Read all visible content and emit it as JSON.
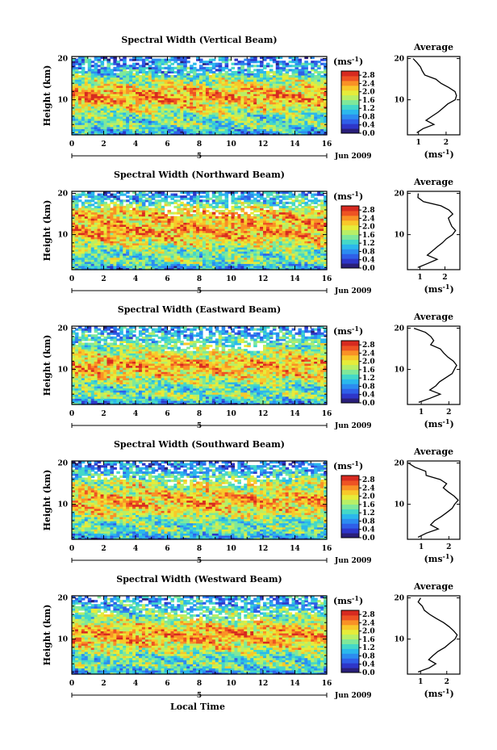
{
  "figure": {
    "xlabel": "Local Time",
    "date_label": "Jun 2009",
    "date_marker": "5",
    "cb_unit": "(ms",
    "cb_unit_exp": "-1",
    "cb_unit_close": ")",
    "avg_title": "Average",
    "ylabel_main": "Height (km)"
  },
  "chart_data": [
    {
      "type": "heatmap",
      "title": "Spectral Width (Vertical Beam)",
      "xlabel": "Local Time",
      "ylabel": "Height (km)",
      "x_ticks": [
        "0",
        "2",
        "4",
        "6",
        "8",
        "10",
        "12",
        "14",
        "16"
      ],
      "xlim": [
        0,
        16
      ],
      "y_ticks": [
        "10",
        "20"
      ],
      "ylim": [
        1.5,
        20.5
      ],
      "colorbar": {
        "unit": "(ms-1)",
        "ticks": [
          "0.0",
          "0.4",
          "0.8",
          "1.2",
          "1.6",
          "2.0",
          "2.4",
          "2.8"
        ],
        "range": [
          0,
          3.0
        ]
      },
      "average_profile": {
        "title": "Average",
        "xlabel": "(ms-1)",
        "x_ticks": [
          "1",
          "2"
        ],
        "xlim": [
          0.6,
          2.5
        ],
        "height_km": [
          2,
          3,
          4,
          5,
          6,
          7,
          8,
          9,
          10,
          11,
          12,
          13,
          14,
          15,
          16,
          17,
          18,
          19,
          20
        ],
        "width_ms": [
          0.9,
          1.2,
          1.6,
          1.3,
          1.5,
          1.7,
          1.9,
          2.1,
          2.3,
          2.4,
          2.3,
          2.1,
          1.8,
          1.6,
          1.3,
          1.1,
          0.9,
          0.8,
          0.7
        ]
      }
    },
    {
      "type": "heatmap",
      "title": "Spectral Width (Northward Beam)",
      "xlabel": "Local Time",
      "ylabel": "Height (km)",
      "x_ticks": [
        "0",
        "2",
        "4",
        "6",
        "8",
        "10",
        "12",
        "14",
        "16"
      ],
      "xlim": [
        0,
        16
      ],
      "y_ticks": [
        "10",
        "20"
      ],
      "ylim": [
        1.5,
        20.5
      ],
      "colorbar": {
        "unit": "(ms-1)",
        "ticks": [
          "0.0",
          "0.4",
          "0.8",
          "1.2",
          "1.6",
          "2.0",
          "2.4",
          "2.8"
        ],
        "range": [
          0,
          3.0
        ]
      },
      "average_profile": {
        "title": "Average",
        "xlabel": "(ms-1)",
        "x_ticks": [
          "1",
          "2"
        ],
        "xlim": [
          0.5,
          2.6
        ],
        "height_km": [
          2,
          3,
          4,
          5,
          6,
          7,
          8,
          9,
          10,
          11,
          12,
          13,
          14,
          15,
          16,
          17,
          18,
          19,
          20
        ],
        "width_ms": [
          0.9,
          1.3,
          1.7,
          1.3,
          1.5,
          1.7,
          1.9,
          2.1,
          2.3,
          2.4,
          2.3,
          2.2,
          2.1,
          2.3,
          2.0,
          1.7,
          1.3,
          1.0,
          0.8
        ]
      }
    },
    {
      "type": "heatmap",
      "title": "Spectral Width (Eastward Beam)",
      "xlabel": "Local Time",
      "ylabel": "Height (km)",
      "x_ticks": [
        "0",
        "2",
        "4",
        "6",
        "8",
        "10",
        "12",
        "14",
        "16"
      ],
      "xlim": [
        0,
        16
      ],
      "y_ticks": [
        "10",
        "20"
      ],
      "ylim": [
        1.5,
        20.5
      ],
      "colorbar": {
        "unit": "(ms-1)",
        "ticks": [
          "0.0",
          "0.4",
          "0.8",
          "1.2",
          "1.6",
          "2.0",
          "2.4",
          "2.8"
        ],
        "range": [
          0,
          3.0
        ]
      },
      "average_profile": {
        "title": "Average",
        "xlabel": "(ms-1)",
        "x_ticks": [
          "1",
          "2"
        ],
        "xlim": [
          0.5,
          2.4
        ],
        "height_km": [
          2,
          3,
          4,
          5,
          6,
          7,
          8,
          9,
          10,
          11,
          12,
          13,
          14,
          15,
          16,
          17,
          18,
          19,
          20
        ],
        "width_ms": [
          0.9,
          1.3,
          1.7,
          1.3,
          1.5,
          1.7,
          1.9,
          2.1,
          2.2,
          2.3,
          2.2,
          2.0,
          1.8,
          1.7,
          1.5,
          1.3,
          1.2,
          1.0,
          0.9
        ]
      }
    },
    {
      "type": "heatmap",
      "title": "Spectral Width (Southward Beam)",
      "xlabel": "Local Time",
      "ylabel": "Height (km)",
      "x_ticks": [
        "0",
        "2",
        "4",
        "6",
        "8",
        "10",
        "12",
        "14",
        "16"
      ],
      "xlim": [
        0,
        16
      ],
      "y_ticks": [
        "10",
        "20"
      ],
      "ylim": [
        1.5,
        20.5
      ],
      "colorbar": {
        "unit": "(ms-1)",
        "ticks": [
          "0.0",
          "0.4",
          "0.8",
          "1.2",
          "1.6",
          "2.0",
          "2.4",
          "2.8"
        ],
        "range": [
          0,
          3.0
        ]
      },
      "average_profile": {
        "title": "Average",
        "xlabel": "(ms-1)",
        "x_ticks": [
          "1",
          "2"
        ],
        "xlim": [
          0.5,
          2.4
        ],
        "height_km": [
          2,
          3,
          4,
          5,
          6,
          7,
          8,
          9,
          10,
          11,
          12,
          13,
          14,
          15,
          16,
          17,
          18,
          19,
          20
        ],
        "width_ms": [
          0.9,
          1.2,
          1.6,
          1.3,
          1.5,
          1.7,
          1.9,
          2.1,
          2.2,
          2.3,
          2.2,
          2.0,
          1.8,
          1.9,
          1.6,
          1.3,
          1.0,
          0.8,
          0.7
        ]
      }
    },
    {
      "type": "heatmap",
      "title": "Spectral Width (Westward Beam)",
      "xlabel": "Local Time",
      "ylabel": "Height (km)",
      "x_ticks": [
        "0",
        "2",
        "4",
        "6",
        "8",
        "10",
        "12",
        "14",
        "16"
      ],
      "xlim": [
        0,
        16
      ],
      "y_ticks": [
        "10",
        "20"
      ],
      "ylim": [
        1.5,
        20.5
      ],
      "colorbar": {
        "unit": "(ms-1)",
        "ticks": [
          "0.0",
          "0.4",
          "0.8",
          "1.2",
          "1.6",
          "2.0",
          "2.4",
          "2.8"
        ],
        "range": [
          0,
          3.0
        ]
      },
      "average_profile": {
        "title": "Average",
        "xlabel": "(ms-1)",
        "x_ticks": [
          "1",
          "2"
        ],
        "xlim": [
          0.5,
          2.5
        ],
        "height_km": [
          2,
          3,
          4,
          5,
          6,
          7,
          8,
          9,
          10,
          11,
          12,
          13,
          14,
          15,
          16,
          17,
          18,
          19,
          20
        ],
        "width_ms": [
          0.9,
          1.3,
          1.6,
          1.3,
          1.5,
          1.7,
          1.9,
          2.1,
          2.3,
          2.4,
          2.3,
          2.1,
          1.9,
          1.6,
          1.4,
          1.3,
          1.1,
          1.0,
          0.9
        ]
      }
    }
  ]
}
